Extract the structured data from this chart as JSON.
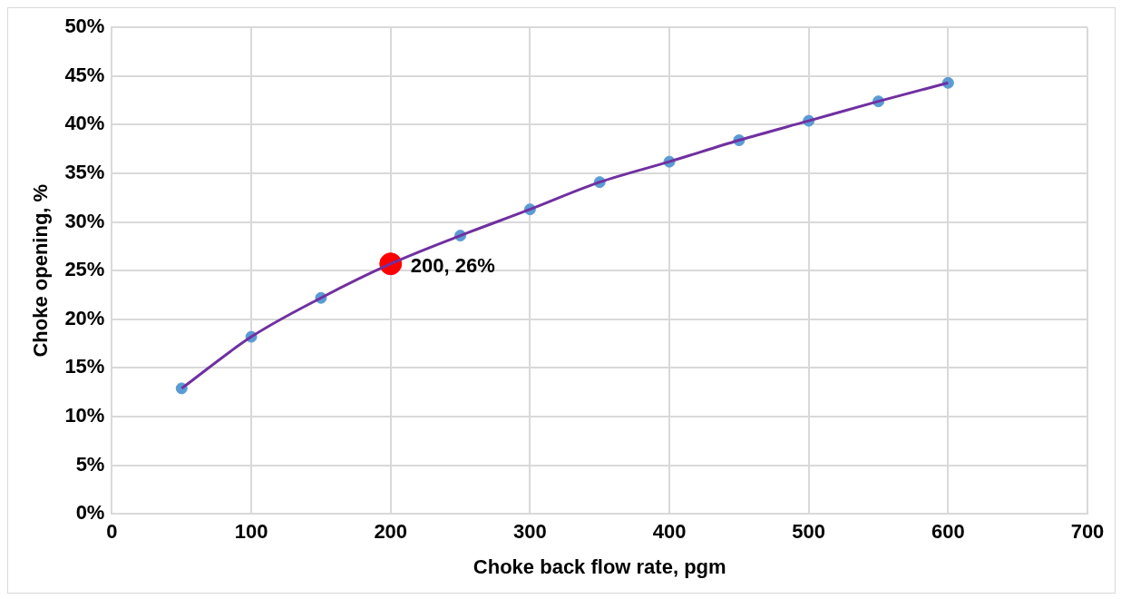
{
  "chart_data": {
    "type": "line",
    "xlabel": "Choke back flow rate, pgm",
    "ylabel": "Choke opening, %",
    "xlim": [
      0,
      700
    ],
    "xticks": [
      0,
      100,
      200,
      300,
      400,
      500,
      600,
      700
    ],
    "ylim": [
      0,
      50
    ],
    "yticks": [
      {
        "value": 0,
        "label": "0%"
      },
      {
        "value": 5,
        "label": "5%"
      },
      {
        "value": 10,
        "label": "10%"
      },
      {
        "value": 15,
        "label": "15%"
      },
      {
        "value": 20,
        "label": "20%"
      },
      {
        "value": 25,
        "label": "25%"
      },
      {
        "value": 30,
        "label": "30%"
      },
      {
        "value": 35,
        "label": "35%"
      },
      {
        "value": 40,
        "label": "40%"
      },
      {
        "value": 45,
        "label": "45%"
      },
      {
        "value": 50,
        "label": "50%"
      }
    ],
    "grid": true,
    "legend": false,
    "series": [
      {
        "color": "#7030a0",
        "marker": "none",
        "x": [
          50,
          100,
          150,
          200,
          250,
          300,
          350,
          400,
          450,
          500,
          550,
          600
        ],
        "values": [
          12.9,
          18.2,
          22.2,
          25.7,
          28.6,
          31.3,
          34.1,
          36.2,
          38.4,
          40.4,
          42.4,
          44.3
        ]
      },
      {
        "type": "scatter",
        "color": "#5b9bd5",
        "marker": "circle",
        "x": [
          50,
          100,
          150,
          200,
          250,
          300,
          350,
          400,
          450,
          500,
          550,
          600
        ],
        "values": [
          12.9,
          18.2,
          22.2,
          null,
          28.6,
          31.3,
          34.1,
          36.2,
          38.4,
          40.4,
          42.4,
          44.3
        ]
      },
      {
        "type": "scatter",
        "color": "#ff0000",
        "marker": "circle",
        "x": [
          200
        ],
        "values": [
          25.7
        ],
        "value_labels": [
          "200, 26%"
        ]
      }
    ]
  }
}
